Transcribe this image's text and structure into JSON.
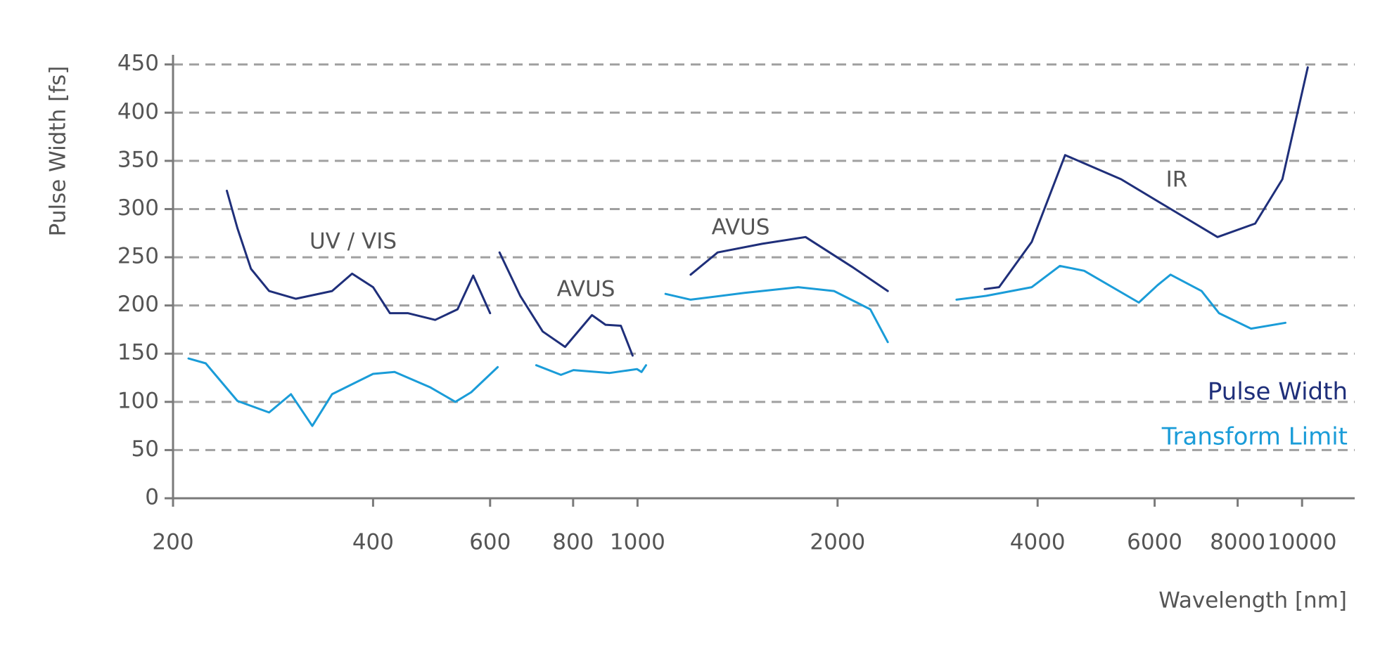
{
  "chart_data": {
    "type": "line",
    "x_label": "Wavelength [nm]",
    "y_label": "Pulse Width [fs]",
    "xscale": "log",
    "xlim": [
      200,
      12000
    ],
    "ylim": [
      0,
      460
    ],
    "xticks": [
      200,
      400,
      600,
      800,
      1000,
      2000,
      4000,
      6000,
      8000,
      10000
    ],
    "yticks": [
      0,
      50,
      100,
      150,
      200,
      250,
      300,
      350,
      400,
      450
    ],
    "grid": true,
    "legend": "lower right",
    "annotations": [
      "UV / VIS",
      "AVUS",
      "AVUS",
      "IR"
    ],
    "series": [
      {
        "name": "Pulse Width",
        "color": "#1f2f7a",
        "x": [
          241,
          250,
          262,
          279,
          306,
          347,
          372,
          400,
          424,
          451,
          496,
          536,
          566,
          600,
          null,
          620,
          666,
          720,
          778,
          854,
          895,
          944,
          983,
          null,
          1202,
          1320,
          1540,
          1790,
          2104,
          2380,
          null,
          3330,
          3500,
          3920,
          4400,
          5340,
          6240,
          7460,
          8500,
          9340,
          10200
        ],
        "values": [
          319,
          280,
          238,
          215,
          207,
          215,
          233,
          219,
          192,
          192,
          185,
          196,
          231,
          192,
          null,
          255,
          210,
          173,
          157,
          190,
          180,
          179,
          148,
          null,
          232,
          255,
          264,
          271,
          240,
          215,
          null,
          217,
          219,
          266,
          356,
          331,
          303,
          271,
          285,
          331,
          447
        ]
      },
      {
        "name": "Transform Limit",
        "color": "#1a9cd8",
        "x": [
          211,
          224,
          250,
          279,
          301,
          324,
          347,
          400,
          431,
          488,
          532,
          562,
          616,
          null,
          704,
          767,
          801,
          908,
          998,
          1014,
          1030,
          null,
          1102,
          1202,
          1448,
          1745,
          1976,
          2240,
          2380,
          null,
          3020,
          3350,
          3920,
          4320,
          4700,
          5680,
          6060,
          6340,
          7060,
          7500,
          8380,
          9440
        ],
        "values": [
          145,
          140,
          101,
          89,
          108,
          75,
          108,
          129,
          131,
          115,
          100,
          110,
          136,
          null,
          138,
          128,
          133,
          130,
          134,
          131,
          138,
          null,
          212,
          206,
          213,
          219,
          215,
          196,
          162,
          null,
          206,
          210,
          219,
          241,
          236,
          203,
          221,
          232,
          215,
          192,
          176,
          182
        ]
      }
    ]
  }
}
